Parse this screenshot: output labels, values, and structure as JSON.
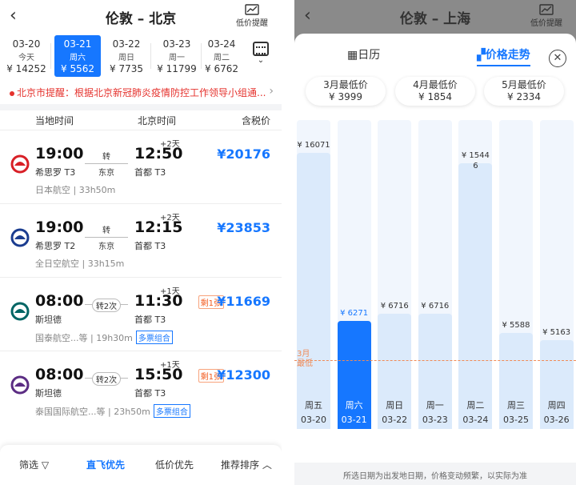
{
  "left": {
    "header": {
      "title": "伦敦 – 北京",
      "alert_label": "低价提醒"
    },
    "dates": [
      {
        "date": "03-20",
        "week": "今天",
        "price": "¥ 14252"
      },
      {
        "date": "03-21",
        "week": "周六",
        "price": "¥ 5562"
      },
      {
        "date": "03-22",
        "week": "周日",
        "price": "¥ 7735"
      },
      {
        "date": "03-23",
        "week": "周一",
        "price": "¥ 11799"
      },
      {
        "date": "03-24",
        "week": "周二",
        "price": "¥ 6762"
      }
    ],
    "notice": "北京市提醒：根据北京新冠肺炎疫情防控工作领导小组通...",
    "columns": {
      "local": "当地时间",
      "beijing": "北京时间",
      "tax": "含税价"
    },
    "flights": [
      {
        "dep": "19:00",
        "dep_ap": "希思罗 T3",
        "arr": "12:50",
        "arr_ap": "首都 T3",
        "plus": "+2天",
        "via_top": "转",
        "via_bottom": "东京",
        "price": "¥20176",
        "airline": "日本航空",
        "duration": "33h50m",
        "left": "",
        "combo": "",
        "accent": "#d81f26"
      },
      {
        "dep": "19:00",
        "dep_ap": "希思罗 T2",
        "arr": "12:15",
        "arr_ap": "首都 T3",
        "plus": "+2天",
        "via_top": "转",
        "via_bottom": "东京",
        "price": "¥23853",
        "airline": "全日空航空",
        "duration": "33h15m",
        "left": "",
        "combo": "",
        "accent": "#1a3c8f"
      },
      {
        "dep": "08:00",
        "dep_ap": "斯坦德",
        "arr": "11:30",
        "arr_ap": "首都 T3",
        "plus": "+1天",
        "via_top": "转2次",
        "via_bottom": "",
        "price": "¥11669",
        "airline": "国泰航空...等",
        "duration": "19h30m",
        "left": "剩1张",
        "combo": "多票组合",
        "accent": "#006564"
      },
      {
        "dep": "08:00",
        "dep_ap": "斯坦德",
        "arr": "15:50",
        "arr_ap": "首都 T3",
        "plus": "+1天",
        "via_top": "转2次",
        "via_bottom": "",
        "price": "¥12300",
        "airline": "泰国国际航空...等",
        "duration": "23h50m",
        "left": "剩1张",
        "combo": "多票组合",
        "accent": "#5b2c83"
      }
    ],
    "bottom": {
      "filter": "筛选",
      "direct": "直飞优先",
      "low": "低价优先",
      "sort": "推荐排序"
    }
  },
  "right": {
    "header": {
      "title": "伦敦 – 上海",
      "alert_label": "低价提醒"
    },
    "tabs": {
      "calendar": "日历",
      "trend": "价格走势"
    },
    "months": [
      {
        "label": "3月最低价",
        "price": "¥ 3999"
      },
      {
        "label": "4月最低价",
        "price": "¥ 1854"
      },
      {
        "label": "5月最低价",
        "price": "¥ 2334"
      }
    ],
    "ref_label_1": "3月",
    "ref_label_2": "最低",
    "footnote": "所选日期为出发地日期，价格变动频繁，以实际为准"
  },
  "chart_data": {
    "type": "bar",
    "categories": [
      "03-20",
      "03-21",
      "03-22",
      "03-23",
      "03-24",
      "03-25",
      "03-26"
    ],
    "weekdays": [
      "周五",
      "周六",
      "周日",
      "周一",
      "周二",
      "周三",
      "周四"
    ],
    "values": [
      16071,
      6271,
      6716,
      6716,
      15446,
      5588,
      5163
    ],
    "value_labels": [
      "¥ 16071",
      "¥ 6271",
      "¥ 6716",
      "¥ 6716",
      "¥ 1544 6",
      "¥ 5588",
      "¥ 5163"
    ],
    "selected_index": 1,
    "reference_value": 3999,
    "colors": {
      "bar": "#dbeafb",
      "selected": "#1677ff",
      "reference": "#f08a55"
    }
  }
}
